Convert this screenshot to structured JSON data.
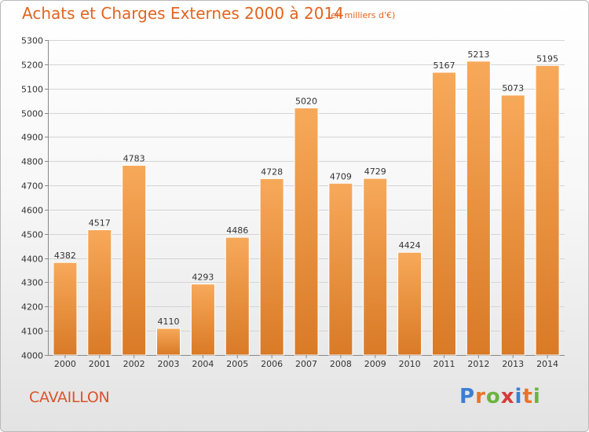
{
  "title": "Achats et Charges Externes 2000 à 2014",
  "unit_label": "(en milliers d'€)",
  "city": "CAVAILLON",
  "logo": {
    "text": "Proxiti",
    "letters": [
      "P",
      "r",
      "o",
      "x",
      "i",
      "t",
      "i"
    ],
    "colors": [
      "#3a7fd5",
      "#e8742a",
      "#6cb33f",
      "#d63a3a",
      "#3a7fd5",
      "#e8742a",
      "#6cb33f"
    ]
  },
  "colors": {
    "bar_top": "#f7a95a",
    "bar_bottom": "#d97a26",
    "title": "#e2641f"
  },
  "chart_data": {
    "type": "bar",
    "title": "Achats et Charges Externes 2000 à 2014",
    "subtitle": "(en milliers d'€)",
    "xlabel": "",
    "ylabel": "",
    "categories": [
      "2000",
      "2001",
      "2002",
      "2003",
      "2004",
      "2005",
      "2006",
      "2007",
      "2008",
      "2009",
      "2010",
      "2011",
      "2012",
      "2013",
      "2014"
    ],
    "values": [
      4382,
      4517,
      4783,
      4110,
      4293,
      4486,
      4728,
      5020,
      4709,
      4729,
      4424,
      5167,
      5213,
      5073,
      5195
    ],
    "ylim": [
      4000,
      5300
    ],
    "yticks": [
      4000,
      4100,
      4200,
      4300,
      4400,
      4500,
      4600,
      4700,
      4800,
      4900,
      5000,
      5100,
      5200,
      5300
    ],
    "grid": true,
    "data_labels": true
  }
}
